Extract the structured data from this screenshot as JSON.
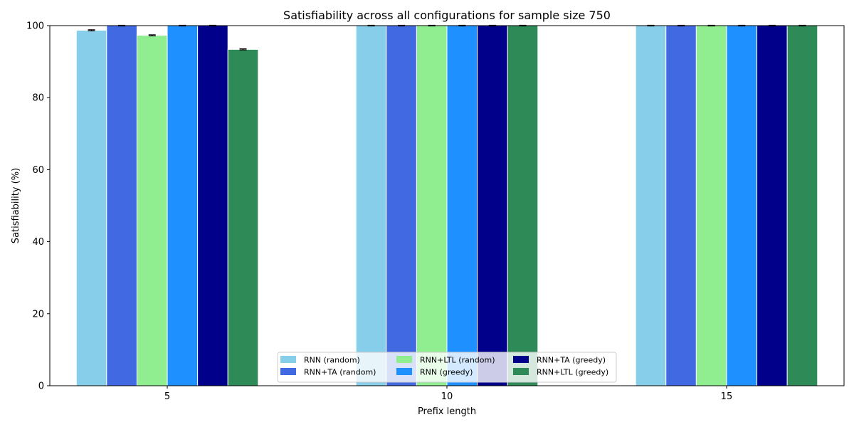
{
  "chart_data": {
    "type": "bar",
    "title": "Satisfiability across all configurations for sample size 750",
    "xlabel": "Prefix length",
    "ylabel": "Satisfiability (%)",
    "categories": [
      "5",
      "10",
      "15"
    ],
    "ylim": [
      0,
      100
    ],
    "yticks": [
      0,
      20,
      40,
      60,
      80,
      100
    ],
    "legend_position": "lower-center",
    "series": [
      {
        "name": "RNN (random)",
        "color": "#87CEEB",
        "values": [
          98.7,
          100,
          100
        ],
        "errors": [
          0.15,
          0.1,
          0.1
        ]
      },
      {
        "name": "RNN+TA (random)",
        "color": "#4169E1",
        "values": [
          100,
          100,
          100
        ],
        "errors": [
          0.1,
          0.1,
          0.1
        ]
      },
      {
        "name": "RNN+LTL (random)",
        "color": "#90EE90",
        "values": [
          97.3,
          100,
          100
        ],
        "errors": [
          0.15,
          0.1,
          0.1
        ]
      },
      {
        "name": "RNN (greedy)",
        "color": "#1E90FF",
        "values": [
          100,
          100,
          100
        ],
        "errors": [
          0.1,
          0.1,
          0.1
        ]
      },
      {
        "name": "RNN+TA (greedy)",
        "color": "#00008B",
        "values": [
          100,
          100,
          100
        ],
        "errors": [
          0.1,
          0.1,
          0.1
        ]
      },
      {
        "name": "RNN+LTL (greedy)",
        "color": "#2E8B57",
        "values": [
          93.4,
          100,
          100
        ],
        "errors": [
          0.15,
          0.1,
          0.1
        ]
      }
    ]
  }
}
